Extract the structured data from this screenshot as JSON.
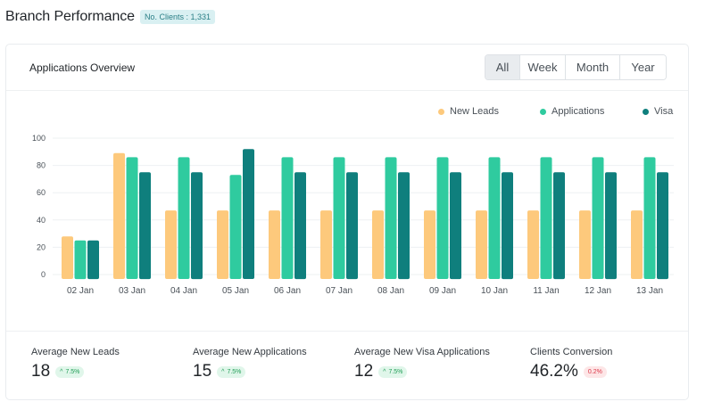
{
  "header": {
    "title": "Branch Performance",
    "clients_badge": "No. Clients : 1,331"
  },
  "card": {
    "title": "Applications Overview",
    "range_options": [
      "All",
      "Week",
      "Month",
      "Year"
    ],
    "active_range": "All"
  },
  "chart_data": {
    "type": "bar",
    "title": "",
    "xlabel": "",
    "ylabel": "",
    "ylim": [
      0,
      100
    ],
    "yticks": [
      0,
      20,
      40,
      60,
      80,
      100
    ],
    "grid": true,
    "legend_position": "top-right",
    "categories": [
      "02 Jan",
      "03 Jan",
      "04 Jan",
      "05 Jan",
      "06 Jan",
      "07 Jan",
      "08 Jan",
      "09 Jan",
      "10 Jan",
      "11 Jan",
      "12 Jan",
      "13 Jan"
    ],
    "series": [
      {
        "name": "New Leads",
        "color": "#fdc97c",
        "values": [
          28,
          89,
          47,
          47,
          47,
          47,
          47,
          47,
          47,
          47,
          47,
          47
        ]
      },
      {
        "name": "Applications",
        "color": "#2fcb9f",
        "values": [
          25,
          86,
          86,
          73,
          86,
          86,
          86,
          86,
          86,
          86,
          86,
          86
        ]
      },
      {
        "name": "Visa",
        "color": "#0f7f7d",
        "values": [
          25,
          75,
          75,
          92,
          75,
          75,
          75,
          75,
          75,
          75,
          75,
          75
        ]
      }
    ]
  },
  "stats": [
    {
      "label": "Average  New Leads",
      "value": "18",
      "change": "7.5%",
      "trend": "up"
    },
    {
      "label": "Average New Applications",
      "value": "15",
      "change": "7.5%",
      "trend": "up"
    },
    {
      "label": "Average New Visa Applications",
      "value": "12",
      "change": "7.5%",
      "trend": "up"
    },
    {
      "label": "Clients Conversion",
      "value": "46.2%",
      "change": "0.2%",
      "trend": "down"
    }
  ],
  "icons": {
    "up": "arrow-up-icon"
  }
}
